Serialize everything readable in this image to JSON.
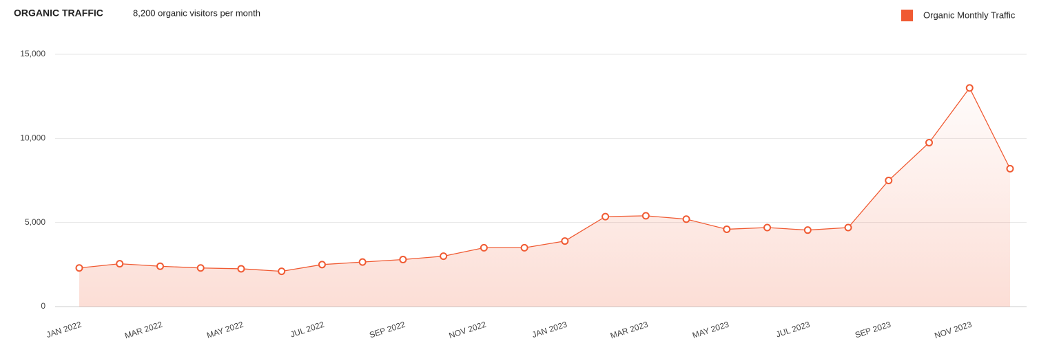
{
  "title": "ORGANIC TRAFFIC",
  "subtitle": "8,200 organic visitors per month",
  "chart_data": {
    "type": "line",
    "categories": [
      "JAN 2022",
      null,
      "MAR 2022",
      null,
      "MAY 2022",
      null,
      "JUL 2022",
      null,
      "SEP 2022",
      null,
      "NOV 2022",
      null,
      "JAN 2023",
      null,
      "MAR 2023",
      null,
      "MAY 2023",
      null,
      "JUL 2023",
      null,
      "SEP 2023",
      null,
      "NOV 2023",
      null
    ],
    "series": [
      {
        "name": "Organic Monthly Traffic",
        "color": "#f05a32",
        "values": [
          2300,
          2550,
          2400,
          2300,
          2250,
          2100,
          2500,
          2650,
          2800,
          3000,
          3500,
          3500,
          3900,
          5350,
          5400,
          5200,
          4600,
          4700,
          4550,
          4700,
          7500,
          9750,
          13000,
          8200
        ]
      }
    ],
    "ylim": [
      0,
      15000
    ],
    "yticks": [
      0,
      {
        "value": 5000,
        "label": "5,000"
      },
      {
        "value": 10000,
        "label": "10,000"
      },
      {
        "value": 15000,
        "label": "15,000"
      }
    ],
    "grid": true,
    "legend": "top-right"
  }
}
